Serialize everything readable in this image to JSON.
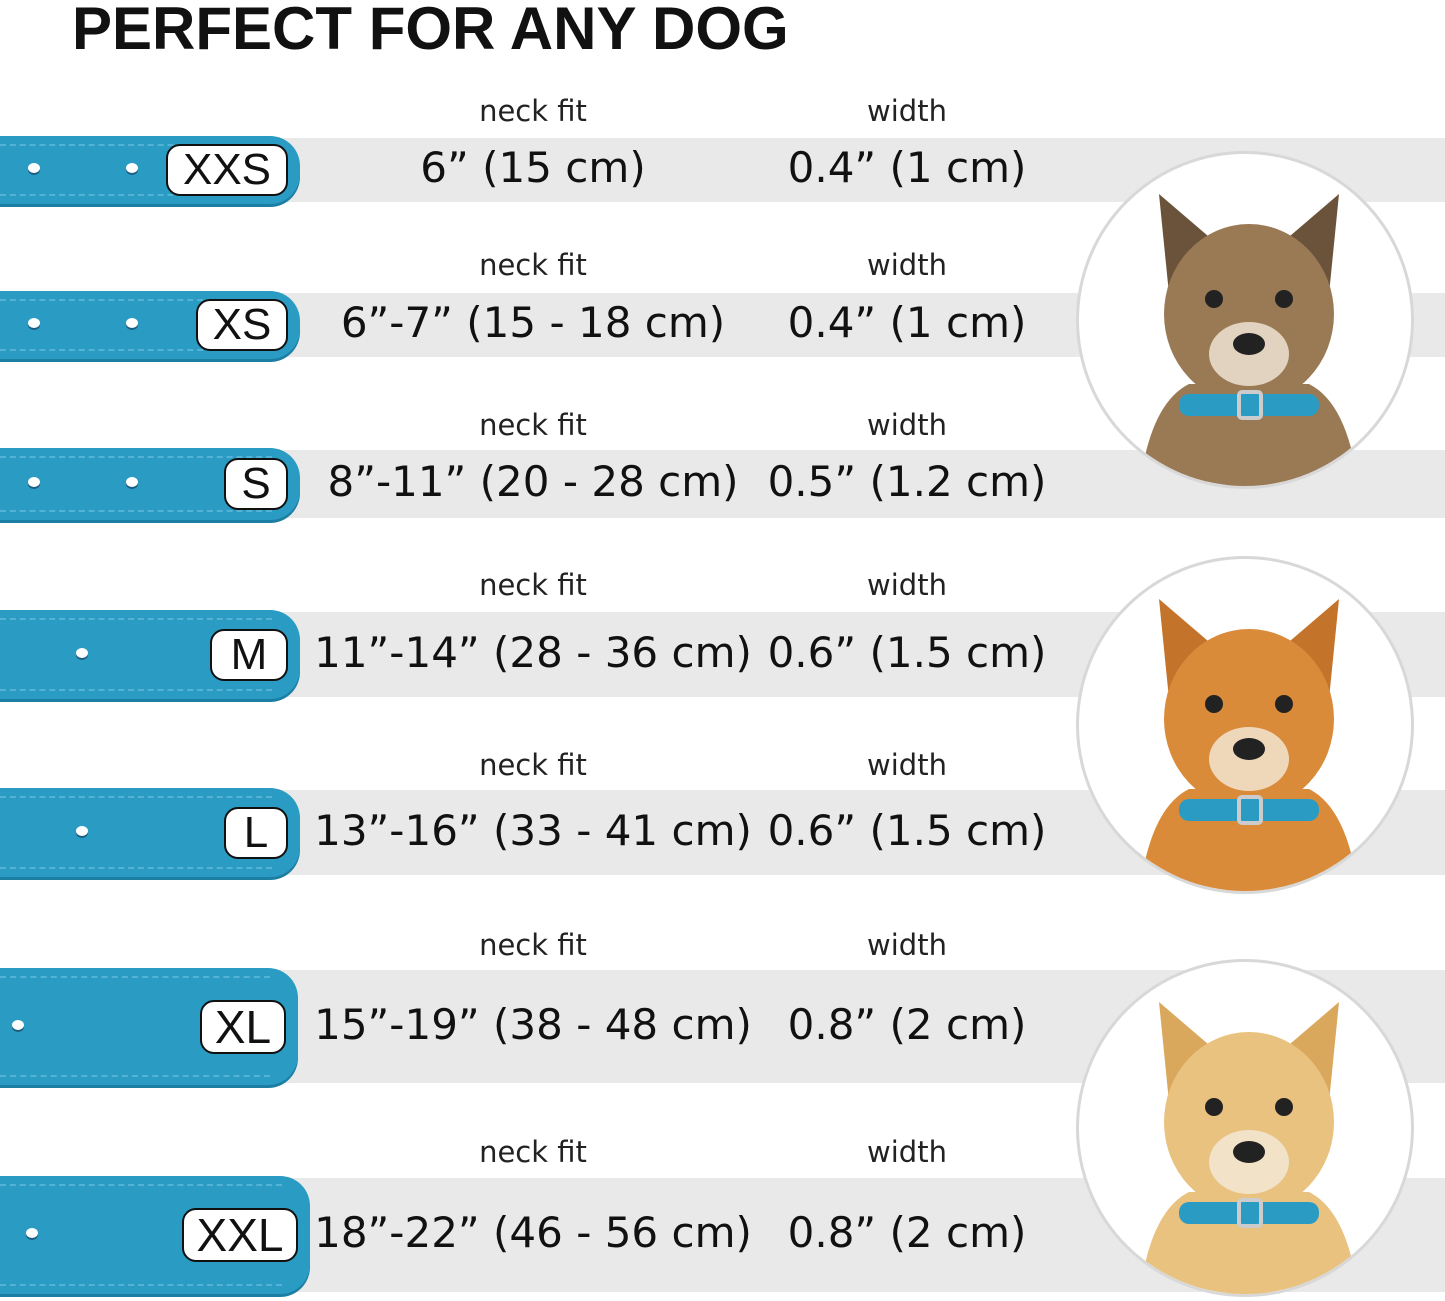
{
  "title": "PERFECT FOR ANY DOG",
  "neck_label": "neck fit",
  "width_label": "width",
  "accent_color": "#2a9cc4",
  "sizes": [
    {
      "size": "XXS",
      "neck_fit": "6” (15 cm)",
      "width": "0.4” (1 cm)"
    },
    {
      "size": "XS",
      "neck_fit": "6”-7” (15 - 18 cm)",
      "width": "0.4” (1 cm)"
    },
    {
      "size": "S",
      "neck_fit": "8”-11” (20 - 28 cm)",
      "width": "0.5” (1.2 cm)"
    },
    {
      "size": "M",
      "neck_fit": "11”-14” (28 - 36 cm)",
      "width": "0.6” (1.5 cm)"
    },
    {
      "size": "L",
      "neck_fit": "13”-16” (33 - 41 cm)",
      "width": "0.6” (1.5 cm)"
    },
    {
      "size": "XL",
      "neck_fit": "15”-19” (38 - 48 cm)",
      "width": "0.8” (2 cm)"
    },
    {
      "size": "XXL",
      "neck_fit": "18”-22” (46 - 56 cm)",
      "width": "0.8” (2 cm)"
    }
  ],
  "dog_photos": [
    "small terrier dog wearing blue collar",
    "corgi dog wearing blue collar",
    "labrador dog wearing blue collar"
  ]
}
